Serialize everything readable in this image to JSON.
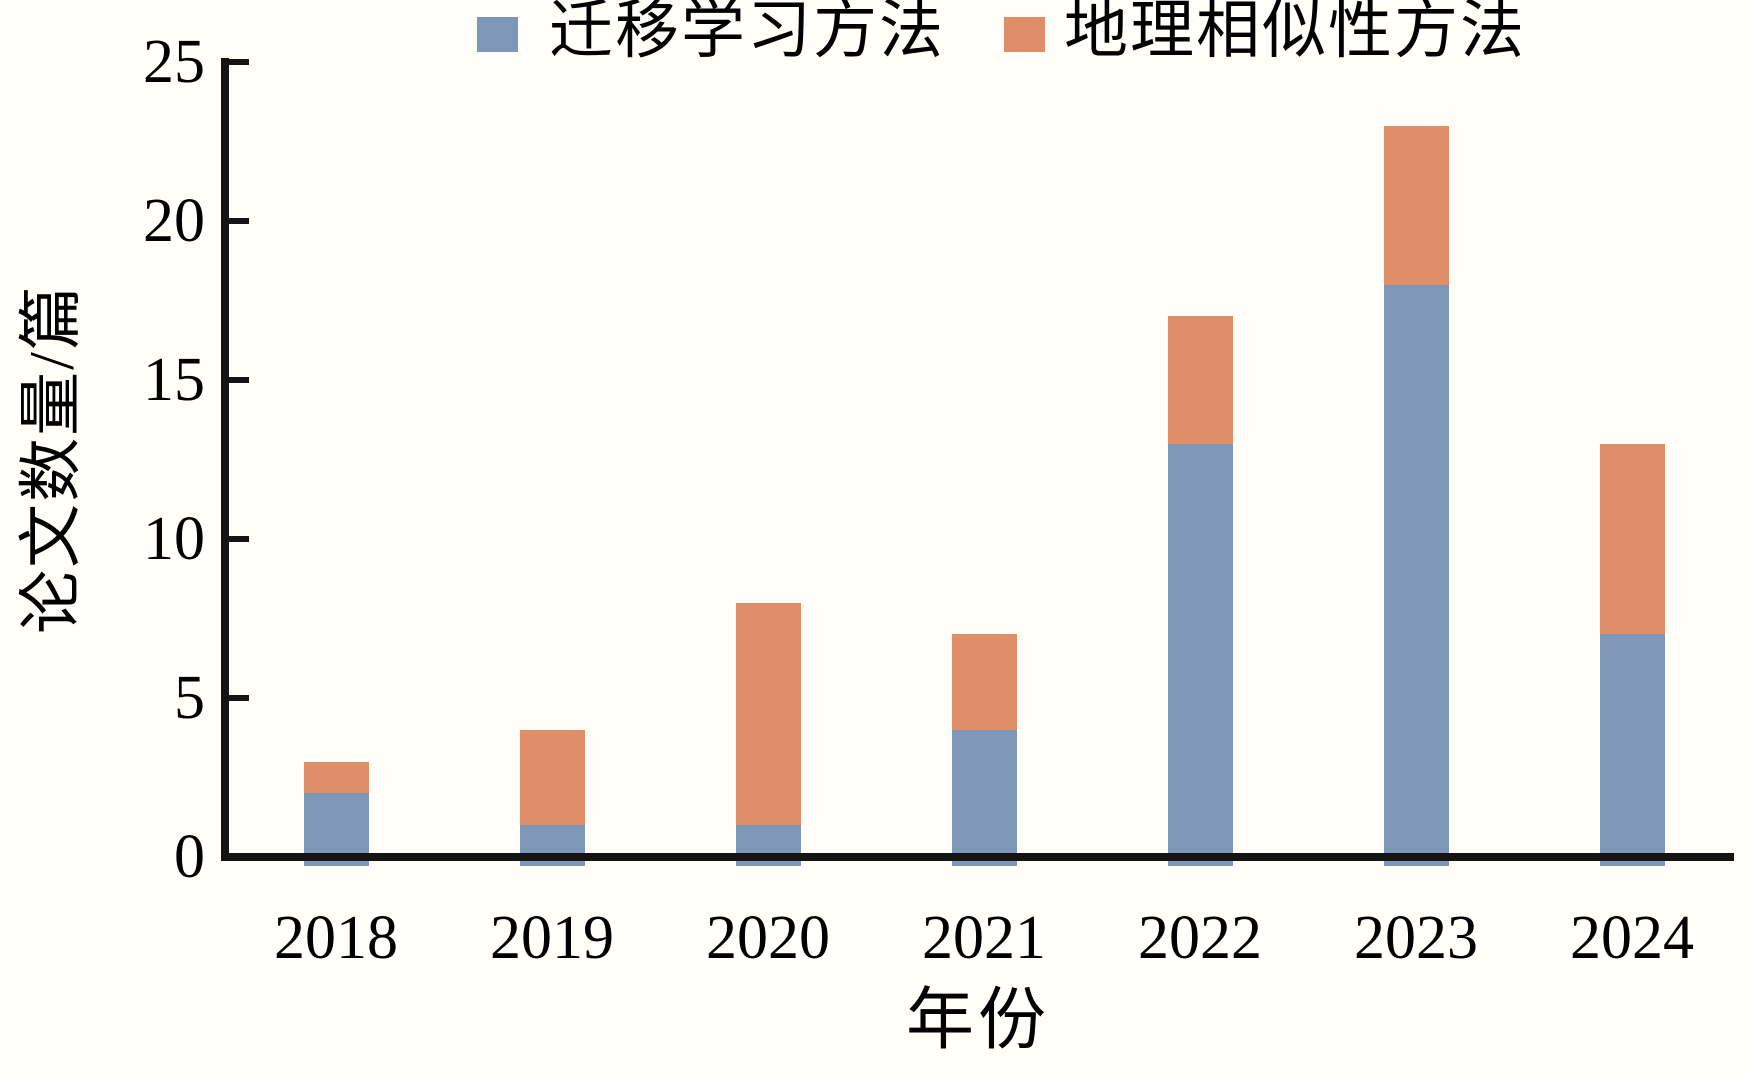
{
  "legend": {
    "items": [
      {
        "label": "迁移学习方法",
        "color": "#7E97B9"
      },
      {
        "label": "地理相似性方法",
        "color": "#E08E68"
      }
    ]
  },
  "axes": {
    "y_label": "论文数量/篇",
    "x_label": "年份"
  },
  "chart_data": {
    "type": "bar",
    "stacked": true,
    "categories": [
      "2018",
      "2019",
      "2020",
      "2021",
      "2022",
      "2023",
      "2024"
    ],
    "series": [
      {
        "name": "迁移学习方法",
        "color": "#7E97B9",
        "values": [
          2,
          1,
          1,
          4,
          13,
          18,
          7
        ]
      },
      {
        "name": "地理相似性方法",
        "color": "#E08E68",
        "values": [
          1,
          3,
          7,
          3,
          4,
          5,
          6
        ]
      }
    ],
    "totals": [
      3,
      4,
      8,
      7,
      17,
      23,
      13
    ],
    "title": "",
    "xlabel": "年份",
    "ylabel": "论文数量/篇",
    "ylim": [
      0,
      25
    ],
    "yticks": [
      0,
      5,
      10,
      15,
      20,
      25
    ],
    "legend_position": "top",
    "grid": false,
    "axis_color": "#141414",
    "background_color": "#fffef8"
  }
}
